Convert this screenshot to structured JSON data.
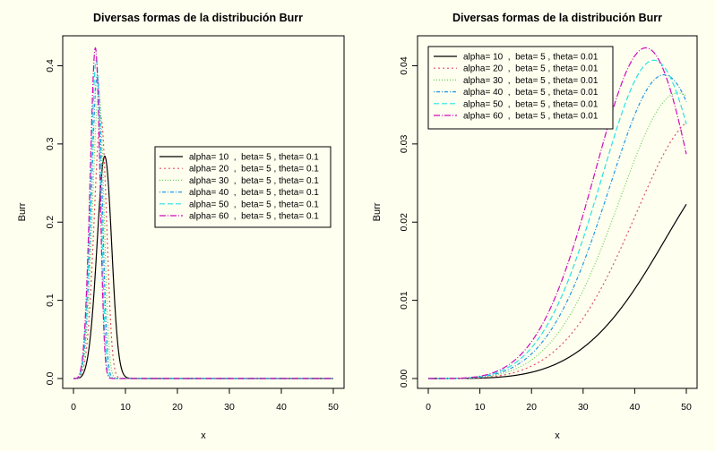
{
  "chart_data": [
    {
      "type": "line",
      "title": "Diversas formas de la distribución Burr",
      "xlabel": "x",
      "ylabel": "Burr",
      "xlim": [
        0,
        50
      ],
      "ylim": [
        0,
        0.42
      ],
      "xticks": [
        0,
        10,
        20,
        30,
        40,
        50
      ],
      "yticks": [
        0.0,
        0.1,
        0.2,
        0.3,
        0.4
      ],
      "ytick_labels": [
        "0.0",
        "0.1",
        "0.2",
        "0.3",
        "0.4"
      ],
      "grid": false,
      "legend_position": "center-right",
      "series": [
        {
          "name": "alpha= 10  ,  beta= 5 , theta= 0.1",
          "color": "#000000",
          "dash": "",
          "alpha": 10,
          "beta": 5,
          "theta": 0.1
        },
        {
          "name": "alpha= 20  ,  beta= 5 , theta= 0.1",
          "color": "#df536b",
          "dash": "2 3",
          "alpha": 20,
          "beta": 5,
          "theta": 0.1
        },
        {
          "name": "alpha= 30  ,  beta= 5 , theta= 0.1",
          "color": "#61d04f",
          "dash": "1 2",
          "alpha": 30,
          "beta": 5,
          "theta": 0.1
        },
        {
          "name": "alpha= 40  ,  beta= 5 , theta= 0.1",
          "color": "#2297e6",
          "dash": "1 2 4 2",
          "alpha": 40,
          "beta": 5,
          "theta": 0.1
        },
        {
          "name": "alpha= 50  ,  beta= 5 , theta= 0.1",
          "color": "#28e2e5",
          "dash": "6 3",
          "alpha": 50,
          "beta": 5,
          "theta": 0.1
        },
        {
          "name": "alpha= 60  ,  beta= 5 , theta= 0.1",
          "color": "#cd0bbc",
          "dash": "7 2 1 2",
          "alpha": 60,
          "beta": 5,
          "theta": 0.1
        }
      ]
    },
    {
      "type": "line",
      "title": "Diversas formas de la distribución Burr",
      "xlabel": "x",
      "ylabel": "Burr",
      "xlim": [
        0,
        50
      ],
      "ylim": [
        0,
        0.042
      ],
      "xticks": [
        0,
        10,
        20,
        30,
        40,
        50
      ],
      "yticks": [
        0.0,
        0.01,
        0.02,
        0.03,
        0.04
      ],
      "ytick_labels": [
        "0.00",
        "0.01",
        "0.02",
        "0.03",
        "0.04"
      ],
      "grid": false,
      "legend_position": "top-left",
      "series": [
        {
          "name": "alpha= 10  ,  beta= 5 , theta= 0.01",
          "color": "#000000",
          "dash": "",
          "alpha": 10,
          "beta": 5,
          "theta": 0.01
        },
        {
          "name": "alpha= 20  ,  beta= 5 , theta= 0.01",
          "color": "#df536b",
          "dash": "2 3",
          "alpha": 20,
          "beta": 5,
          "theta": 0.01
        },
        {
          "name": "alpha= 30  ,  beta= 5 , theta= 0.01",
          "color": "#61d04f",
          "dash": "1 2",
          "alpha": 30,
          "beta": 5,
          "theta": 0.01
        },
        {
          "name": "alpha= 40  ,  beta= 5 , theta= 0.01",
          "color": "#2297e6",
          "dash": "1 2 4 2",
          "alpha": 40,
          "beta": 5,
          "theta": 0.01
        },
        {
          "name": "alpha= 50  ,  beta= 5 , theta= 0.01",
          "color": "#28e2e5",
          "dash": "6 3",
          "alpha": 50,
          "beta": 5,
          "theta": 0.01
        },
        {
          "name": "alpha= 60  ,  beta= 5 , theta= 0.01",
          "color": "#cd0bbc",
          "dash": "7 2 1 2",
          "alpha": 60,
          "beta": 5,
          "theta": 0.01
        }
      ]
    }
  ]
}
